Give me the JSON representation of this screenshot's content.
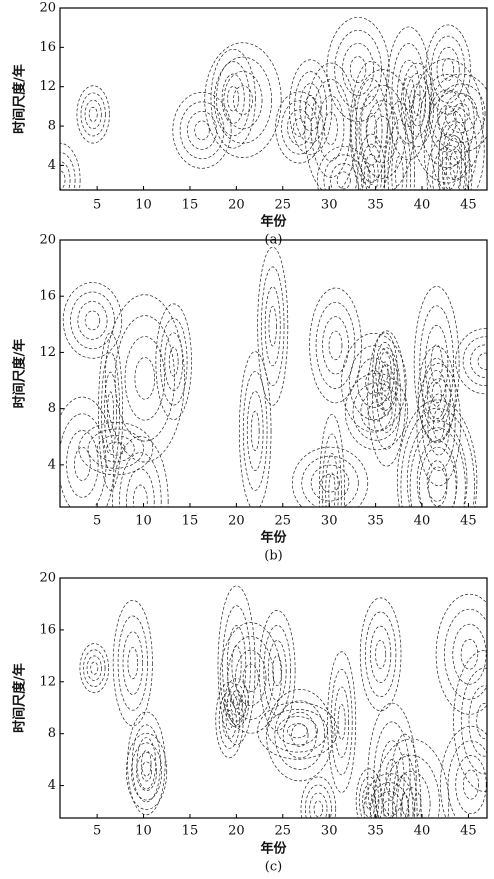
{
  "chart_data": [
    {
      "type": "contour",
      "x_label": "年份",
      "y_label": "时间尺度/年",
      "caption": "(a)",
      "xlim": [
        1,
        47
      ],
      "ylim": [
        1.5,
        20
      ],
      "xticks": [
        5,
        10,
        15,
        20,
        25,
        30,
        35,
        40,
        45
      ],
      "yticks": [
        4,
        8,
        12,
        16,
        20
      ]
    },
    {
      "type": "contour",
      "x_label": "年份",
      "y_label": "时间尺度/年",
      "caption": "(b)",
      "xlim": [
        1,
        47
      ],
      "ylim": [
        1,
        20
      ],
      "xticks": [
        5,
        10,
        15,
        20,
        25,
        30,
        35,
        40,
        45
      ],
      "yticks": [
        4,
        8,
        12,
        16,
        20
      ]
    },
    {
      "type": "contour",
      "x_label": "年份",
      "y_label": "时间尺度/年",
      "caption": "(c)",
      "xlim": [
        1,
        47
      ],
      "ylim": [
        1.5,
        20
      ],
      "xticks": [
        5,
        10,
        15,
        20,
        25,
        30,
        35,
        40,
        45
      ],
      "yticks": [
        4,
        8,
        12,
        16,
        20
      ]
    }
  ]
}
